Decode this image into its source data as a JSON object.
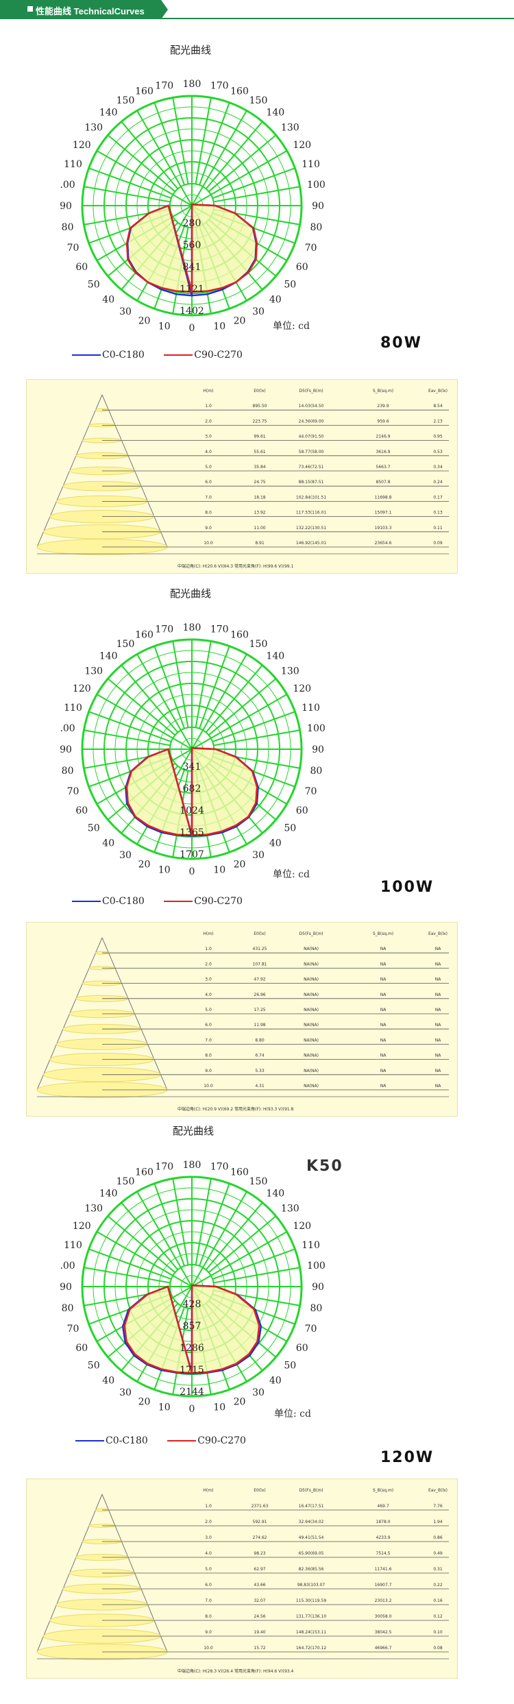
{
  "header": {
    "title": "性能曲线 TechnicalCurves"
  },
  "polar_common": {
    "angle_labels_right": [
      "0",
      "10",
      "20",
      "30",
      "40",
      "50",
      "60",
      "70",
      "80",
      "90",
      "100",
      "110",
      "120",
      "130",
      "140",
      "150",
      "160",
      "170",
      "180"
    ],
    "angle_labels_left": [
      "10",
      "20",
      "30",
      "40",
      "50",
      "60",
      "70",
      "80",
      "90",
      ".00",
      "110",
      "120",
      "130",
      "140",
      "150",
      "160",
      "170"
    ],
    "legend": [
      {
        "label": "C0-C180",
        "color": "#1a2fd6"
      },
      {
        "label": "C90-C270",
        "color": "#e0201f"
      }
    ],
    "grid_color": "#22d62a",
    "fill_color": "#f3f7a8"
  },
  "table_common": {
    "headers": [
      "H(m)",
      "E0(lx)",
      "D5(Fs_B(m)",
      "S_B(sq.m)",
      "Eav_B(lx)"
    ]
  },
  "sections": [
    {
      "title": "配光曲线",
      "unit": "单位: cd",
      "watt": "80W",
      "k50": "",
      "rings": [
        "280",
        "560",
        "841",
        "1121",
        "1402"
      ],
      "max_cd": 1402,
      "table": {
        "rows": [
          [
            "1.0",
            "895.50",
            "14.03(54.50",
            "239.9",
            "8.54"
          ],
          [
            "2.0",
            "223.75",
            "24.36(69.00",
            "959.6",
            "2.13"
          ],
          [
            "3.0",
            "99.61",
            "44.07(91.50",
            "2146.9",
            "0.95"
          ],
          [
            "4.0",
            "55.61",
            "58.77(58.00",
            "3616.9",
            "0.53"
          ],
          [
            "5.0",
            "35.84",
            "73.46(72.51",
            "5663.7",
            "0.34"
          ],
          [
            "6.0",
            "24.75",
            "88.15(87.51",
            "8507.8",
            "0.24"
          ],
          [
            "7.0",
            "18.18",
            "102.84(101.51",
            "11698.8",
            "0.17"
          ],
          [
            "8.0",
            "13.92",
            "117.53(116.01",
            "15097.1",
            "0.13"
          ],
          [
            "9.0",
            "11.00",
            "132.22(130.51",
            "19103.3",
            "0.11"
          ],
          [
            "10.0",
            "8.91",
            "146.92(145.01",
            "23654.6",
            "0.09"
          ]
        ],
        "footer": "中端边角(C): H(20.6 V)(64.3   常用光束角(F): H(99.6 V)(99.1"
      }
    },
    {
      "title": "配光曲线",
      "unit": "单位: cd",
      "watt": "100W",
      "k50": "",
      "rings": [
        "341",
        "682",
        "1024",
        "1365",
        "1707"
      ],
      "max_cd": 1707,
      "table": {
        "rows": [
          [
            "1.0",
            "431.25",
            "NA(NA)",
            "NA",
            "NA"
          ],
          [
            "2.0",
            "107.81",
            "NA(NA)",
            "NA",
            "NA"
          ],
          [
            "3.0",
            "47.92",
            "NA(NA)",
            "NA",
            "NA"
          ],
          [
            "4.0",
            "26.96",
            "NA(NA)",
            "NA",
            "NA"
          ],
          [
            "5.0",
            "17.25",
            "NA(NA)",
            "NA",
            "NA"
          ],
          [
            "6.0",
            "11.98",
            "NA(NA)",
            "NA",
            "NA"
          ],
          [
            "7.0",
            "8.80",
            "NA(NA)",
            "NA",
            "NA"
          ],
          [
            "8.0",
            "6.74",
            "NA(NA)",
            "NA",
            "NA"
          ],
          [
            "9.0",
            "5.33",
            "NA(NA)",
            "NA",
            "NA"
          ],
          [
            "10.0",
            "4.31",
            "NA(NA)",
            "NA",
            "NA"
          ]
        ],
        "footer": "中端边角(C): H(20.9 V)(69.2   常用光束角(F): H(93.3 V)(91.8"
      }
    },
    {
      "title": "配光曲线",
      "unit": "单位: cd",
      "watt": "120W",
      "k50": "K50",
      "rings": [
        "428",
        "857",
        "1286",
        "1715",
        "2144"
      ],
      "max_cd": 2144,
      "table": {
        "rows": [
          [
            "1.0",
            "2371.63",
            "16.47(17.51",
            "469.7",
            "7.76"
          ],
          [
            "2.0",
            "592.91",
            "32.94(34.02",
            "1878.0",
            "1.94"
          ],
          [
            "3.0",
            "274.62",
            "49.41(51.54",
            "4233.9",
            "0.86"
          ],
          [
            "4.0",
            "98.23",
            "65.90(69.05",
            "7514.5",
            "0.49"
          ],
          [
            "5.0",
            "62.97",
            "82.36(85.56",
            "11741.6",
            "0.31"
          ],
          [
            "6.0",
            "43.66",
            "98.83(103.07",
            "16907.7",
            "0.22"
          ],
          [
            "7.0",
            "32.07",
            "115.30(119.59",
            "23013.2",
            "0.16"
          ],
          [
            "8.0",
            "24.56",
            "131.77(136.10",
            "30058.0",
            "0.12"
          ],
          [
            "9.0",
            "19.40",
            "148.24(153.11",
            "38042.5",
            "0.10"
          ],
          [
            "10.0",
            "15.72",
            "164.72(170.12",
            "46966.7",
            "0.08"
          ]
        ],
        "footer": "中端边角(C): H(28.3 V)(26.4   常用光束角(F): H(94.6 V)(93.4"
      }
    }
  ],
  "chart_data": [
    {
      "type": "polar",
      "title": "配光曲线",
      "unit": "cd",
      "angle_range_deg": [
        0,
        180
      ],
      "radial_ticks": [
        280,
        560,
        841,
        1121,
        1402
      ],
      "series": [
        {
          "name": "C0-C180",
          "angles": [
            0,
            10,
            20,
            30,
            40,
            50,
            60,
            70,
            80,
            90
          ],
          "values": [
            1150,
            1150,
            1140,
            1130,
            1110,
            1060,
            950,
            830,
            560,
            300
          ]
        },
        {
          "name": "C90-C270",
          "angles": [
            0,
            10,
            20,
            30,
            40,
            50,
            60,
            70,
            80,
            90
          ],
          "values": [
            1100,
            1110,
            1120,
            1130,
            1120,
            1070,
            960,
            840,
            560,
            300
          ]
        }
      ]
    },
    {
      "type": "polar",
      "title": "配光曲线",
      "unit": "cd",
      "angle_range_deg": [
        0,
        180
      ],
      "radial_ticks": [
        341,
        682,
        1024,
        1365,
        1707
      ],
      "series": [
        {
          "name": "C0-C180",
          "angles": [
            0,
            10,
            20,
            30,
            40,
            50,
            60,
            70,
            80,
            90
          ],
          "values": [
            1350,
            1360,
            1380,
            1390,
            1380,
            1320,
            1190,
            1010,
            700,
            370
          ]
        },
        {
          "name": "C90-C270",
          "angles": [
            0,
            10,
            20,
            30,
            40,
            50,
            60,
            70,
            80,
            90
          ],
          "values": [
            1340,
            1350,
            1360,
            1370,
            1370,
            1300,
            1170,
            1000,
            690,
            370
          ]
        }
      ]
    },
    {
      "type": "polar",
      "title": "配光曲线",
      "unit": "cd",
      "angle_range_deg": [
        0,
        180
      ],
      "radial_ticks": [
        428,
        857,
        1286,
        1715,
        2144
      ],
      "series": [
        {
          "name": "C0-C180",
          "angles": [
            0,
            10,
            20,
            30,
            40,
            50,
            60,
            70,
            80,
            90
          ],
          "values": [
            1700,
            1710,
            1740,
            1760,
            1760,
            1700,
            1560,
            1320,
            900,
            470
          ]
        },
        {
          "name": "C90-C270",
          "angles": [
            0,
            10,
            20,
            30,
            40,
            50,
            60,
            70,
            80,
            90
          ],
          "values": [
            1690,
            1700,
            1720,
            1740,
            1730,
            1670,
            1520,
            1290,
            880,
            470
          ]
        }
      ]
    }
  ]
}
